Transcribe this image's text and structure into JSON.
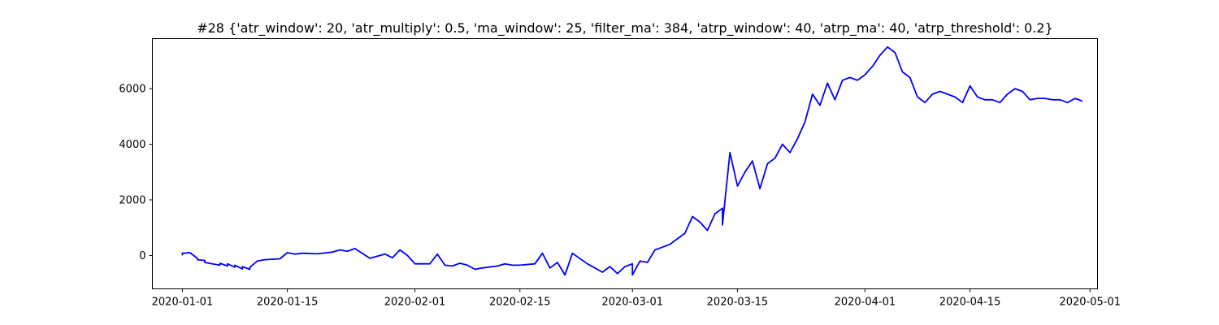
{
  "chart_data": {
    "type": "line",
    "title": "#28 {'atr_window': 20, 'atr_multiply': 0.5, 'ma_window': 25, 'filter_ma': 384, 'atrp_window': 40, 'atrp_ma': 40, 'atrp_threshold': 0.2}",
    "xlabel": "",
    "ylabel": "",
    "xlim": [
      "2019-12-28",
      "2020-05-02"
    ],
    "ylim": [
      -1200,
      7800
    ],
    "x_ticks": [
      "2020-01-01",
      "2020-01-15",
      "2020-02-01",
      "2020-02-15",
      "2020-03-01",
      "2020-03-15",
      "2020-04-01",
      "2020-04-15",
      "2020-05-01"
    ],
    "y_ticks": [
      0,
      2000,
      4000,
      6000
    ],
    "grid": false,
    "colors": {
      "line": "#0000ff",
      "axes": "#000000",
      "background": "#ffffff"
    },
    "series": [
      {
        "x": [
          "2020-01-01",
          "2020-01-01",
          "2020-01-02",
          "2020-01-03",
          "2020-01-03",
          "2020-01-04",
          "2020-01-04",
          "2020-01-05",
          "2020-01-06",
          "2020-01-06",
          "2020-01-07",
          "2020-01-07",
          "2020-01-08",
          "2020-01-08",
          "2020-01-09",
          "2020-01-09",
          "2020-01-10",
          "2020-01-10",
          "2020-01-11",
          "2020-01-12",
          "2020-01-14",
          "2020-01-15",
          "2020-01-16",
          "2020-01-17",
          "2020-01-19",
          "2020-01-21",
          "2020-01-22",
          "2020-01-23",
          "2020-01-24",
          "2020-01-26",
          "2020-01-28",
          "2020-01-29",
          "2020-01-30",
          "2020-01-31",
          "2020-02-01",
          "2020-02-03",
          "2020-02-04",
          "2020-02-05",
          "2020-02-06",
          "2020-02-07",
          "2020-02-08",
          "2020-02-09",
          "2020-02-10",
          "2020-02-12",
          "2020-02-13",
          "2020-02-14",
          "2020-02-15",
          "2020-02-17",
          "2020-02-18",
          "2020-02-19",
          "2020-02-20",
          "2020-02-21",
          "2020-02-22",
          "2020-02-24",
          "2020-02-25",
          "2020-02-26",
          "2020-02-27",
          "2020-02-28",
          "2020-02-29",
          "2020-03-01",
          "2020-03-01",
          "2020-03-02",
          "2020-03-03",
          "2020-03-04",
          "2020-03-05",
          "2020-03-06",
          "2020-03-07",
          "2020-03-08",
          "2020-03-09",
          "2020-03-10",
          "2020-03-11",
          "2020-03-12",
          "2020-03-13",
          "2020-03-13",
          "2020-03-14",
          "2020-03-15",
          "2020-03-16",
          "2020-03-17",
          "2020-03-18",
          "2020-03-19",
          "2020-03-20",
          "2020-03-21",
          "2020-03-22",
          "2020-03-23",
          "2020-03-24",
          "2020-03-25",
          "2020-03-26",
          "2020-03-27",
          "2020-03-28",
          "2020-03-29",
          "2020-03-30",
          "2020-03-31",
          "2020-04-01",
          "2020-04-02",
          "2020-04-03",
          "2020-04-04",
          "2020-04-05",
          "2020-04-06",
          "2020-04-07",
          "2020-04-08",
          "2020-04-09",
          "2020-04-10",
          "2020-04-11",
          "2020-04-12",
          "2020-04-13",
          "2020-04-14",
          "2020-04-15",
          "2020-04-16",
          "2020-04-17",
          "2020-04-18",
          "2020-04-19",
          "2020-04-20",
          "2020-04-21",
          "2020-04-22",
          "2020-04-23",
          "2020-04-24",
          "2020-04-25",
          "2020-04-26",
          "2020-04-27",
          "2020-04-28",
          "2020-04-29",
          "2020-04-30"
        ],
        "y": [
          0,
          80,
          100,
          -100,
          -150,
          -180,
          -250,
          -300,
          -350,
          -280,
          -380,
          -300,
          -420,
          -350,
          -480,
          -400,
          -500,
          -420,
          -200,
          -150,
          -120,
          100,
          50,
          80,
          60,
          120,
          200,
          150,
          250,
          -100,
          50,
          -80,
          200,
          0,
          -300,
          -300,
          50,
          -350,
          -380,
          -280,
          -350,
          -500,
          -450,
          -380,
          -300,
          -350,
          -350,
          -300,
          80,
          -450,
          -250,
          -700,
          80,
          -300,
          -450,
          -600,
          -400,
          -650,
          -400,
          -300,
          -700,
          -200,
          -250,
          200,
          300,
          400,
          600,
          800,
          1400,
          1200,
          900,
          1500,
          1700,
          1100,
          3700,
          2500,
          3000,
          3400,
          2400,
          3300,
          3500,
          4000,
          3700,
          4200,
          4800,
          5800,
          5400,
          6200,
          5600,
          6300,
          6400,
          6300,
          6500,
          6800,
          7200,
          7500,
          7300,
          6600,
          6400,
          5700,
          5500,
          5800,
          5900,
          5800,
          5700,
          5500,
          6100,
          5700,
          5600,
          5600,
          5500,
          5800,
          6000,
          5900,
          5600,
          5650,
          5650,
          5600,
          5600,
          5500,
          5650,
          5550
        ]
      }
    ]
  }
}
